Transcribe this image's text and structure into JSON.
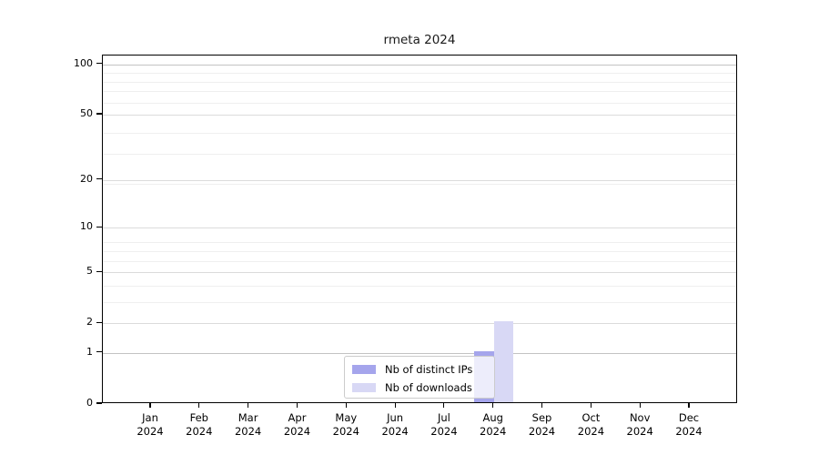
{
  "chart_data": {
    "type": "bar",
    "title": "rmeta 2024",
    "months": [
      "Jan",
      "Feb",
      "Mar",
      "Apr",
      "May",
      "Jun",
      "Jul",
      "Aug",
      "Sep",
      "Oct",
      "Nov",
      "Dec"
    ],
    "year_label": "2024",
    "series": [
      {
        "name": "Nb of distinct IPs",
        "color": "#a5a5ec",
        "values": [
          0,
          0,
          0,
          0,
          0,
          0,
          0,
          1,
          0,
          0,
          0,
          0
        ]
      },
      {
        "name": "Nb of downloads",
        "color": "#d8d8f5",
        "values": [
          0,
          0,
          0,
          0,
          0,
          0,
          0,
          2,
          0,
          0,
          0,
          0
        ]
      }
    ],
    "y_axis": {
      "scale": "log10(1+value)",
      "major_ticks": [
        0,
        1,
        2,
        5,
        10,
        20,
        50,
        100
      ],
      "strong_grid_ticks": [
        1,
        100
      ],
      "minor_grid_values": [
        3,
        4,
        6,
        7,
        8,
        19,
        29,
        39,
        59,
        69,
        79,
        89
      ],
      "top_value": 113
    },
    "x_axis": {
      "tick_count": 12
    },
    "legend_position": "lower-center-inside",
    "colors": {
      "axis": "#000000",
      "grid_major": "#dbdbdb",
      "grid_strong": "#c3c3c3",
      "grid_minor": "#efefef",
      "legend_border": "#cccccc",
      "legend_background": "rgba(255,255,255,0.8)",
      "text": "#000000",
      "background": "#ffffff"
    }
  }
}
